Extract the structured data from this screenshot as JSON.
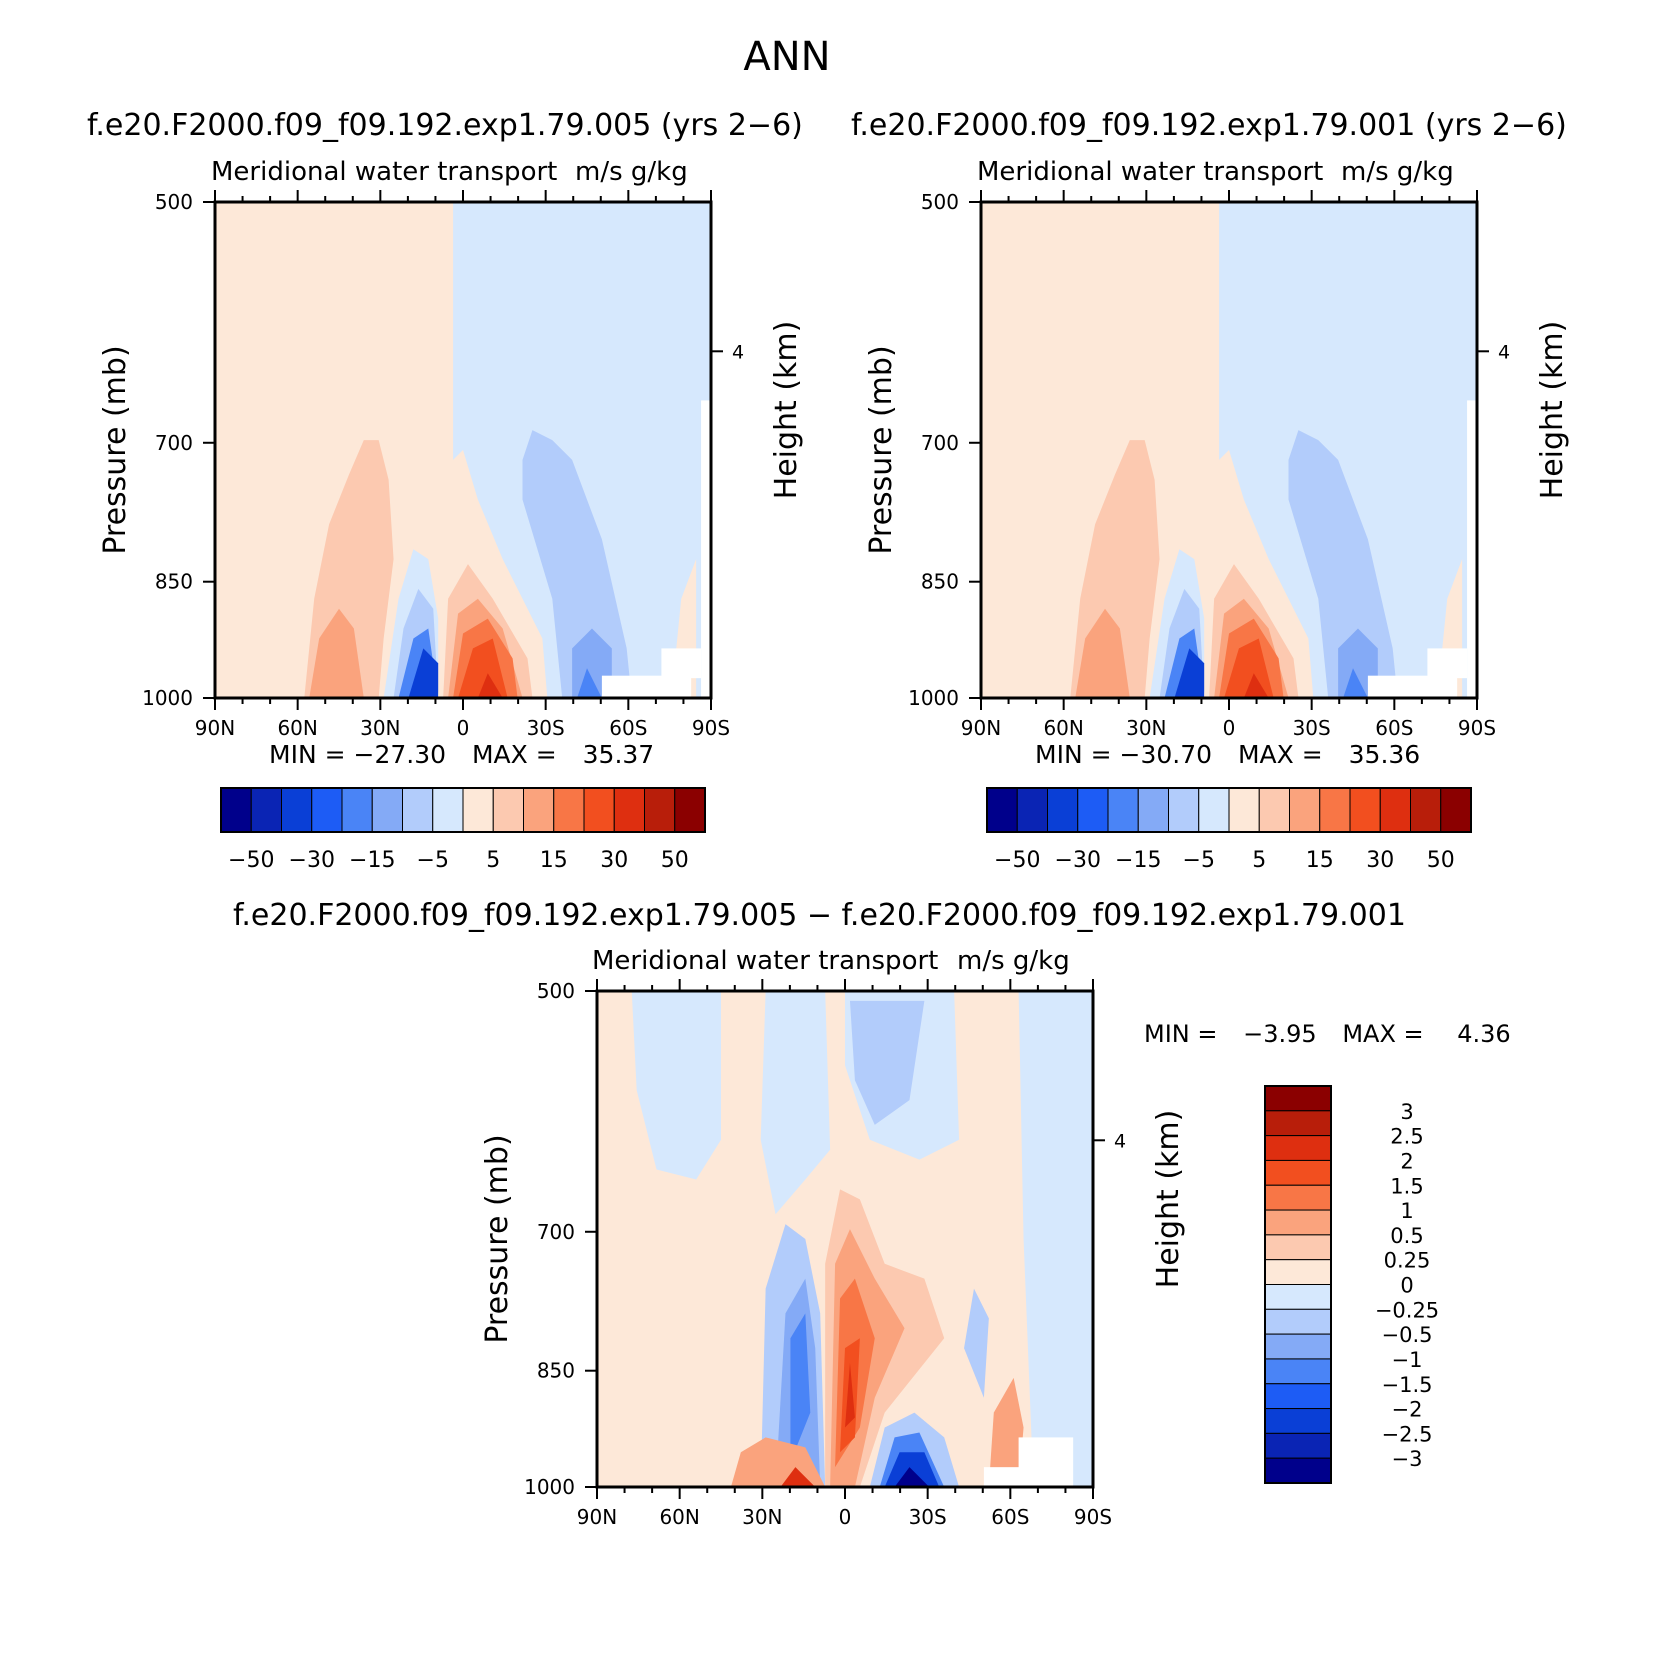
{
  "figure": {
    "title": "ANN"
  },
  "colors": {
    "main_scale": [
      "#00008b",
      "#0a24b4",
      "#0a3fd6",
      "#1d5cf5",
      "#4a84f6",
      "#84aaf6",
      "#b2ccfb",
      "#d6e8fd",
      "#fde8d8",
      "#fcc9b0",
      "#faa37d",
      "#f87646",
      "#f24f1f",
      "#de2f10",
      "#b81e0a",
      "#8b0000"
    ],
    "diff_scale": [
      "#00008b",
      "#0a24b4",
      "#0a3fd6",
      "#1d5cf5",
      "#4a84f6",
      "#84aaf6",
      "#b2ccfb",
      "#d6e8fd",
      "#fde8d8",
      "#fcc9b0",
      "#faa37d",
      "#f87646",
      "#f24f1f",
      "#de2f10",
      "#b81e0a",
      "#8b0000"
    ]
  },
  "panels": [
    {
      "case": "f.e20.F2000.f09_f09.192.exp1.79.005 (yrs 2−6)",
      "subtitle_left": "Meridional water transport",
      "subtitle_right": "m/s g/kg",
      "ylabel": "Pressure (mb)",
      "ylabel_right": "Height (km)",
      "min_label": "MIN =",
      "min_value": "−27.30",
      "max_label": "MAX =",
      "max_value": "35.37"
    },
    {
      "case": "f.e20.F2000.f09_f09.192.exp1.79.001 (yrs 2−6)",
      "subtitle_left": "Meridional water transport",
      "subtitle_right": "m/s g/kg",
      "ylabel": "Pressure (mb)",
      "ylabel_right": "Height (km)",
      "min_label": "MIN =",
      "min_value": "−30.70",
      "max_label": "MAX =",
      "max_value": "35.36"
    },
    {
      "case": "f.e20.F2000.f09_f09.192.exp1.79.005 − f.e20.F2000.f09_f09.192.exp1.79.001",
      "subtitle_left": "Meridional water transport",
      "subtitle_right": "m/s g/kg",
      "ylabel": "Pressure (mb)",
      "ylabel_right": "Height (km)",
      "min_label": "MIN =",
      "min_value": "−3.95",
      "max_label": "MAX =",
      "max_value": "4.36"
    }
  ],
  "chart_data": [
    {
      "type": "heatmap",
      "title": "f.e20.F2000.f09_f09.192.exp1.79.005 (yrs 2−6)",
      "subtitle": "Meridional water transport",
      "units": "m/s g/kg",
      "xlabel": "",
      "ylabel": "Pressure (mb)",
      "ylabel_right": "Height (km)",
      "x_ticks": [
        "90N",
        "60N",
        "30N",
        "0",
        "30S",
        "60S",
        "90S"
      ],
      "y_ticks": [
        "500",
        "700",
        "850",
        "1000"
      ],
      "y_ticks_right": [
        "4"
      ],
      "xlim": [
        90,
        -90
      ],
      "ylim": [
        1000,
        500
      ],
      "colorbar_labels": [
        "−50",
        "−30",
        "−15",
        "−5",
        "5",
        "15",
        "30",
        "50"
      ],
      "min": -27.3,
      "max": 35.37
    },
    {
      "type": "heatmap",
      "title": "f.e20.F2000.f09_f09.192.exp1.79.001 (yrs 2−6)",
      "subtitle": "Meridional water transport",
      "units": "m/s g/kg",
      "xlabel": "",
      "ylabel": "Pressure (mb)",
      "ylabel_right": "Height (km)",
      "x_ticks": [
        "90N",
        "60N",
        "30N",
        "0",
        "30S",
        "60S",
        "90S"
      ],
      "y_ticks": [
        "500",
        "700",
        "850",
        "1000"
      ],
      "y_ticks_right": [
        "4"
      ],
      "xlim": [
        90,
        -90
      ],
      "ylim": [
        1000,
        500
      ],
      "colorbar_labels": [
        "−50",
        "−30",
        "−15",
        "−5",
        "5",
        "15",
        "30",
        "50"
      ],
      "min": -30.7,
      "max": 35.36
    },
    {
      "type": "heatmap",
      "title": "f.e20.F2000.f09_f09.192.exp1.79.005 − f.e20.F2000.f09_f09.192.exp1.79.001",
      "subtitle": "Meridional water transport",
      "units": "m/s g/kg",
      "xlabel": "",
      "ylabel": "Pressure (mb)",
      "ylabel_right": "Height (km)",
      "x_ticks": [
        "90N",
        "60N",
        "30N",
        "0",
        "30S",
        "60S",
        "90S"
      ],
      "y_ticks": [
        "500",
        "700",
        "850",
        "1000"
      ],
      "y_ticks_right": [
        "4"
      ],
      "xlim": [
        90,
        -90
      ],
      "ylim": [
        1000,
        500
      ],
      "colorbar_labels": [
        "3",
        "2.5",
        "2",
        "1.5",
        "1",
        "0.5",
        "0.25",
        "0",
        "−0.25",
        "−0.5",
        "−1",
        "−1.5",
        "−2",
        "−2.5",
        "−3"
      ],
      "min": -3.95,
      "max": 4.36
    }
  ]
}
